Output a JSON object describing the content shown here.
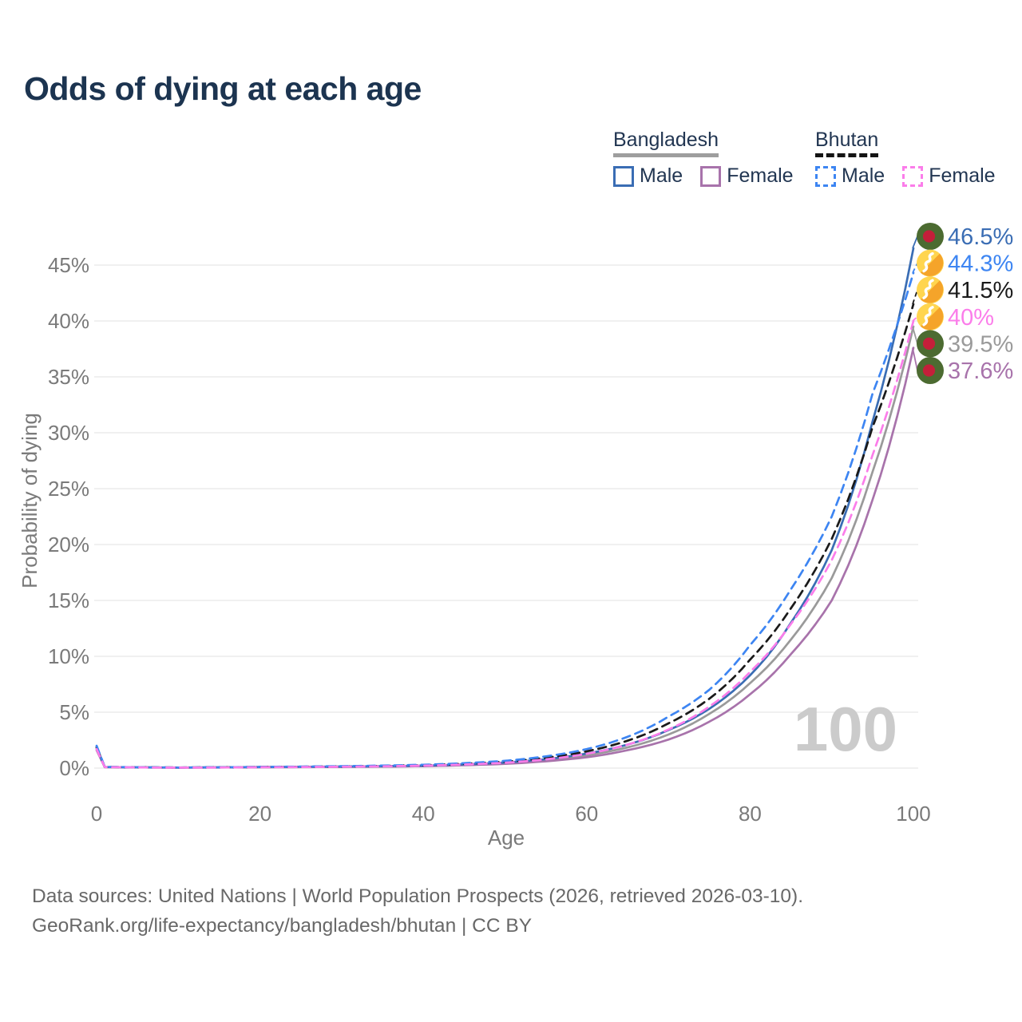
{
  "header": {
    "title": "Odds of dying at each age"
  },
  "legend": {
    "groups": [
      {
        "name": "Bangladesh",
        "line_style": "solid",
        "underline_color": "#9e9e9e",
        "items": [
          {
            "label": "Male",
            "color": "#3a6db4"
          },
          {
            "label": "Female",
            "color": "#a873ab"
          }
        ]
      },
      {
        "name": "Bhutan",
        "line_style": "dashed",
        "underline_color": "#141414",
        "items": [
          {
            "label": "Male",
            "color": "#3d85f2"
          },
          {
            "label": "Female",
            "color": "#fb7dea"
          }
        ]
      }
    ]
  },
  "chart_data": {
    "type": "line",
    "title": "Odds of dying at each age",
    "xlabel": "Age",
    "ylabel": "Probability of dying",
    "xlim": [
      0,
      100
    ],
    "ylim": [
      0,
      47.5
    ],
    "x_ticks": [
      0,
      20,
      40,
      60,
      80,
      100
    ],
    "y_ticks": [
      0,
      5,
      10,
      15,
      20,
      25,
      30,
      35,
      40,
      45
    ],
    "y_tick_labels": [
      "0%",
      "5%",
      "10%",
      "15%",
      "20%",
      "25%",
      "30%",
      "35%",
      "40%",
      "45%"
    ],
    "grid": "horizontal",
    "age_watermark": "100",
    "ages": [
      0,
      1,
      10,
      20,
      30,
      40,
      50,
      55,
      60,
      65,
      70,
      75,
      80,
      85,
      90,
      95,
      100
    ],
    "series": [
      {
        "name": "Bangladesh Male",
        "flag": "bangladesh",
        "color": "#3a6db4",
        "dash": "solid",
        "end_label": "46.5%",
        "values": [
          1.9,
          0.1,
          0.05,
          0.1,
          0.14,
          0.22,
          0.5,
          0.8,
          1.3,
          2.1,
          3.4,
          5.3,
          8.3,
          13.0,
          19.5,
          31.0,
          46.5
        ]
      },
      {
        "name": "Bhutan Male",
        "flag": "bhutan",
        "color": "#3d85f2",
        "dash": "dashed",
        "end_label": "44.3%",
        "values": [
          2.0,
          0.11,
          0.05,
          0.11,
          0.17,
          0.3,
          0.65,
          1.05,
          1.7,
          2.8,
          4.6,
          7.0,
          11.0,
          16.0,
          22.5,
          33.5,
          44.3
        ]
      },
      {
        "name": "Bhutan",
        "flag": "bhutan",
        "color": "#1a1a1a",
        "dash": "dashed",
        "end_label": "41.5%",
        "values": [
          1.85,
          0.1,
          0.05,
          0.1,
          0.15,
          0.26,
          0.57,
          0.92,
          1.5,
          2.45,
          4.0,
          6.2,
          9.7,
          14.3,
          20.5,
          30.5,
          41.5
        ]
      },
      {
        "name": "Bhutan Female",
        "flag": "bhutan",
        "color": "#fb7dea",
        "dash": "dashed",
        "end_label": "40%",
        "values": [
          1.7,
          0.09,
          0.04,
          0.08,
          0.12,
          0.22,
          0.48,
          0.78,
          1.28,
          2.1,
          3.45,
          5.5,
          8.6,
          12.9,
          18.6,
          28.0,
          40.0
        ]
      },
      {
        "name": "Bangladesh",
        "flag": "bangladesh",
        "color": "#9a9a9a",
        "dash": "solid",
        "end_label": "39.5%",
        "values": [
          1.75,
          0.09,
          0.04,
          0.09,
          0.12,
          0.2,
          0.44,
          0.71,
          1.15,
          1.85,
          3.0,
          4.85,
          7.6,
          11.5,
          17.0,
          26.5,
          39.5
        ]
      },
      {
        "name": "Bangladesh Female",
        "flag": "bangladesh",
        "color": "#a873ab",
        "dash": "solid",
        "end_label": "37.6%",
        "values": [
          1.6,
          0.08,
          0.04,
          0.07,
          0.1,
          0.17,
          0.38,
          0.61,
          0.97,
          1.6,
          2.55,
          4.15,
          6.6,
          10.2,
          15.0,
          24.0,
          37.6
        ]
      }
    ]
  },
  "flags": {
    "bangladesh": {
      "field": "#4c6b31",
      "disc": "#c41f3a"
    },
    "bhutan": {
      "yellow": "#ffd54f",
      "orange": "#f5a42a",
      "dragon": "#ffffff"
    }
  },
  "colors": {
    "title": "#1c3450",
    "axis_text": "#7a7a7a",
    "grid": "#e8e8e8",
    "watermark": "#cbcbcb",
    "footer": "#686868"
  },
  "footer": {
    "line1": "Data sources: United Nations | World Population Prospects (2026, retrieved 2026-03-10).",
    "line2": "GeoRank.org/life-expectancy/bangladesh/bhutan | CC BY"
  }
}
